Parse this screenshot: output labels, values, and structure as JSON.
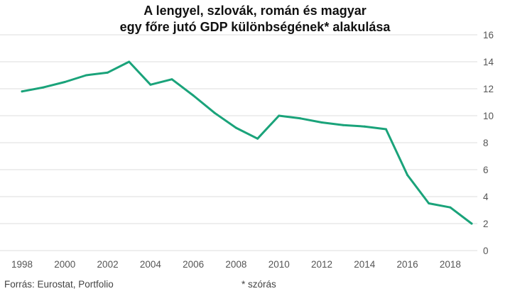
{
  "chart_data": {
    "type": "line",
    "title_lines": [
      "A lengyel, szlovák, román és magyar",
      "egy főre jutó GDP különbségének* alakulása"
    ],
    "xlabel": "",
    "ylabel": "",
    "x": [
      1998,
      1999,
      2000,
      2001,
      2002,
      2003,
      2004,
      2005,
      2006,
      2007,
      2008,
      2009,
      2010,
      2011,
      2012,
      2013,
      2014,
      2015,
      2016,
      2017,
      2018,
      2019
    ],
    "series": [
      {
        "values": [
          11.8,
          12.1,
          12.5,
          13.0,
          13.2,
          14.0,
          12.3,
          12.7,
          11.5,
          10.2,
          9.1,
          8.3,
          10.0,
          9.8,
          9.5,
          9.3,
          9.2,
          9.0,
          5.6,
          3.5,
          3.2,
          2.0
        ],
        "color": "#1aa37a"
      }
    ],
    "x_ticks": [
      "1998",
      "2000",
      "2002",
      "2004",
      "2006",
      "2008",
      "2010",
      "2012",
      "2014",
      "2016",
      "2018"
    ],
    "y_ticks": [
      "0",
      "2",
      "4",
      "6",
      "8",
      "10",
      "12",
      "14",
      "16"
    ],
    "xlim": [
      1998,
      2019
    ],
    "ylim": [
      0,
      16
    ],
    "grid": "horizontal",
    "y_axis_side": "right"
  },
  "footer": {
    "source": "Forrás: Eurostat, Portfolio",
    "note": "* szórás"
  },
  "colors": {
    "line": "#1aa37a",
    "grid": "#dddddd"
  }
}
